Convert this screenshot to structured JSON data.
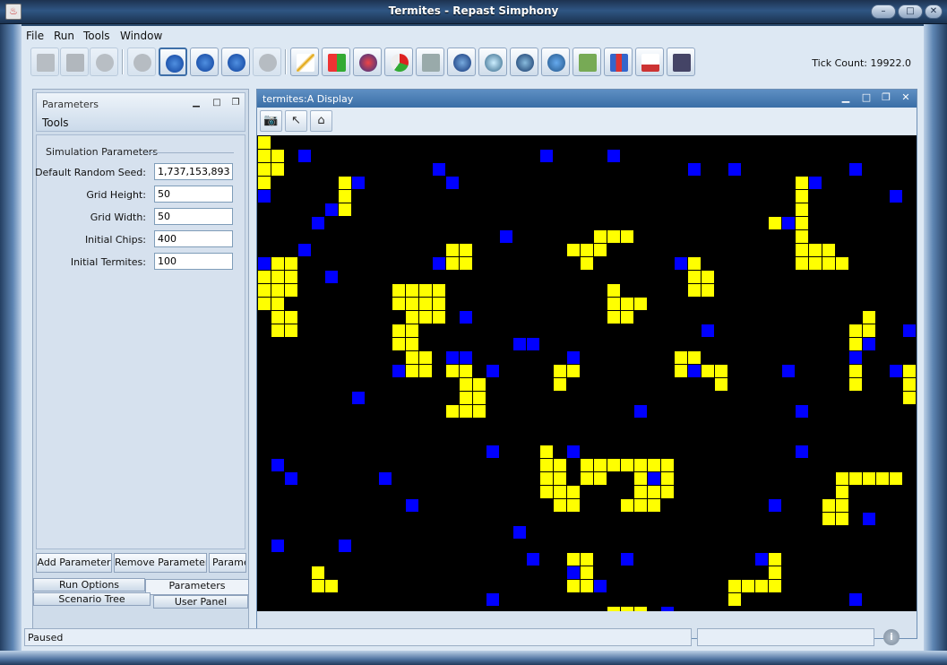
{
  "window": {
    "title": "Termites - Repast Simphony",
    "minimize": "–",
    "maximize": "□",
    "close": "✕"
  },
  "menu": [
    "File",
    "Run",
    "Tools",
    "Window"
  ],
  "toolbar": {
    "tick_label": "Tick Count:",
    "tick_value": "19922.0"
  },
  "left_panel": {
    "title": "Parameters",
    "tools_label": "Tools",
    "section_title": "Simulation Parameters",
    "params": [
      {
        "label": "Default Random Seed:",
        "value": "1,737,153,893"
      },
      {
        "label": "Grid Height:",
        "value": "50"
      },
      {
        "label": "Grid Width:",
        "value": "50"
      },
      {
        "label": "Initial Chips:",
        "value": "400"
      },
      {
        "label": "Initial Termites:",
        "value": "100"
      }
    ],
    "buttons": [
      "Add Parameter",
      "Remove Parameters",
      "Parame"
    ],
    "tabs": {
      "run_options": "Run Options",
      "parameters": "Parameters",
      "scenario_tree": "Scenario Tree",
      "user_panel": "User Panel"
    }
  },
  "display": {
    "title": "termites:A Display",
    "colors": {
      "chip": "#ffff00",
      "termite": "#0000ff",
      "background": "#000000"
    }
  },
  "status": {
    "text": "Paused"
  },
  "icons": {
    "app": "java-icon",
    "toolbar": [
      "open-icon",
      "save-icon",
      "database-icon",
      "power-icon",
      "step-icon",
      "play-icon",
      "stop-icon",
      "reset-icon",
      "chart-icon",
      "colorgrid-icon",
      "people-icon",
      "piechart-icon",
      "calculator-icon",
      "globe-icon",
      "magnifier-icon",
      "network-icon",
      "export-icon",
      "gallery-icon",
      "histogram-icon",
      "report-icon",
      "robot-icon"
    ]
  }
}
